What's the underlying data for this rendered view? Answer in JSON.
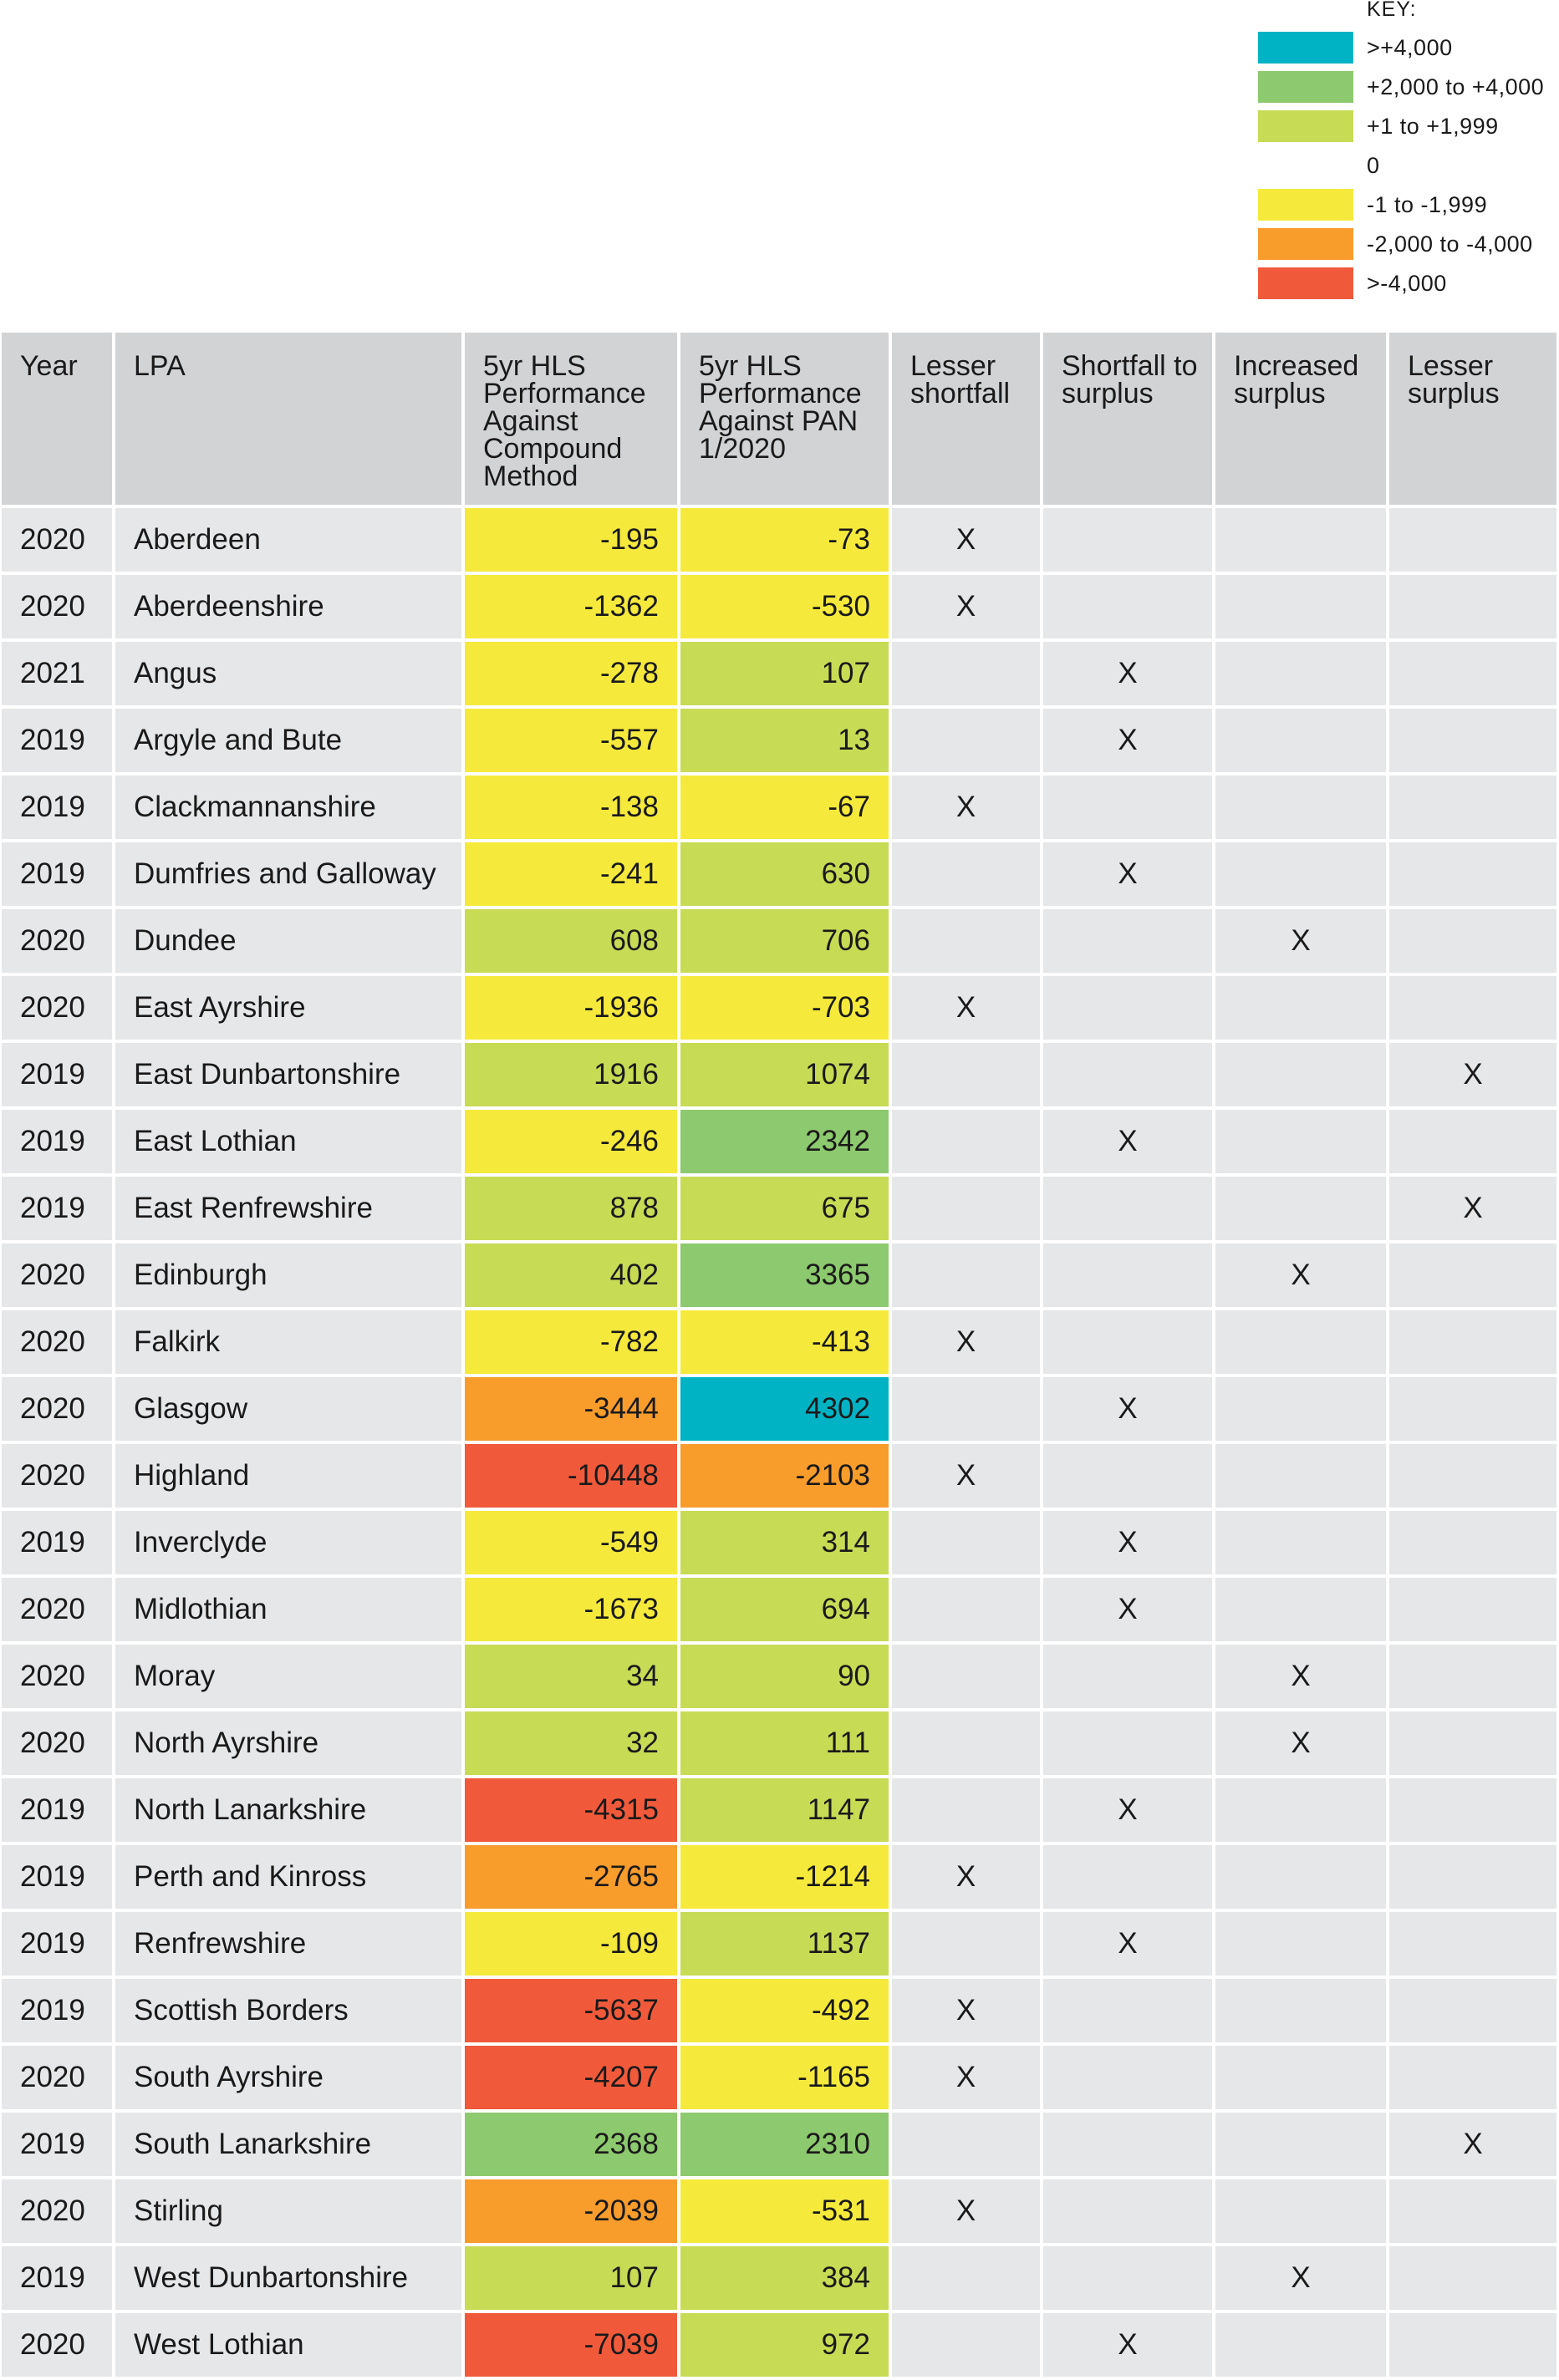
{
  "legend": {
    "title": "KEY:",
    "items": [
      {
        "label": ">+4,000",
        "color": "#00b3c4"
      },
      {
        "label": "+2,000 to +4,000",
        "color": "#8dc96e"
      },
      {
        "label": "+1 to +1,999",
        "color": "#c8db55"
      },
      {
        "label": "0",
        "color": null
      },
      {
        "label": "-1 to -1,999",
        "color": "#f5ea3c"
      },
      {
        "label": "-2,000 to -4,000",
        "color": "#f89c2c"
      },
      {
        "label": ">-4,000",
        "color": "#f05a3b"
      }
    ]
  },
  "chart_data": {
    "type": "table",
    "columns": [
      "Year",
      "LPA",
      "5yr HLS Performance Against Compound Method",
      "5yr HLS Performance Against PAN 1/2020",
      "Lesser shortfall",
      "Shortfall to surplus",
      "Increased surplus",
      "Lesser surplus"
    ],
    "rows": [
      {
        "year": "2020",
        "lpa": "Aberdeen",
        "compound": -195,
        "pan": -73,
        "category": "Lesser shortfall"
      },
      {
        "year": "2020",
        "lpa": "Aberdeenshire",
        "compound": -1362,
        "pan": -530,
        "category": "Lesser shortfall"
      },
      {
        "year": "2021",
        "lpa": "Angus",
        "compound": -278,
        "pan": 107,
        "category": "Shortfall to surplus"
      },
      {
        "year": "2019",
        "lpa": "Argyle and Bute",
        "compound": -557,
        "pan": 13,
        "category": "Shortfall to surplus"
      },
      {
        "year": "2019",
        "lpa": "Clackmannanshire",
        "compound": -138,
        "pan": -67,
        "category": "Lesser shortfall"
      },
      {
        "year": "2019",
        "lpa": "Dumfries and Galloway",
        "compound": -241,
        "pan": 630,
        "category": "Shortfall to surplus"
      },
      {
        "year": "2020",
        "lpa": "Dundee",
        "compound": 608,
        "pan": 706,
        "category": "Increased surplus"
      },
      {
        "year": "2020",
        "lpa": "East Ayrshire",
        "compound": -1936,
        "pan": -703,
        "category": "Lesser shortfall"
      },
      {
        "year": "2019",
        "lpa": "East Dunbartonshire",
        "compound": 1916,
        "pan": 1074,
        "category": "Lesser surplus"
      },
      {
        "year": "2019",
        "lpa": "East Lothian",
        "compound": -246,
        "pan": 2342,
        "category": "Shortfall to surplus"
      },
      {
        "year": "2019",
        "lpa": "East Renfrewshire",
        "compound": 878,
        "pan": 675,
        "category": "Lesser surplus"
      },
      {
        "year": "2020",
        "lpa": "Edinburgh",
        "compound": 402,
        "pan": 3365,
        "category": "Increased surplus"
      },
      {
        "year": "2020",
        "lpa": "Falkirk",
        "compound": -782,
        "pan": -413,
        "category": "Lesser shortfall"
      },
      {
        "year": "2020",
        "lpa": "Glasgow",
        "compound": -3444,
        "pan": 4302,
        "category": "Shortfall to surplus"
      },
      {
        "year": "2020",
        "lpa": "Highland",
        "compound": -10448,
        "pan": -2103,
        "category": "Lesser shortfall"
      },
      {
        "year": "2019",
        "lpa": "Inverclyde",
        "compound": -549,
        "pan": 314,
        "category": "Shortfall to surplus"
      },
      {
        "year": "2020",
        "lpa": "Midlothian",
        "compound": -1673,
        "pan": 694,
        "category": "Shortfall to surplus"
      },
      {
        "year": "2020",
        "lpa": "Moray",
        "compound": 34,
        "pan": 90,
        "category": "Increased surplus"
      },
      {
        "year": "2020",
        "lpa": "North Ayrshire",
        "compound": 32,
        "pan": 111,
        "category": "Increased surplus"
      },
      {
        "year": "2019",
        "lpa": "North Lanarkshire",
        "compound": -4315,
        "pan": 1147,
        "category": "Shortfall to surplus"
      },
      {
        "year": "2019",
        "lpa": "Perth and Kinross",
        "compound": -2765,
        "pan": -1214,
        "category": "Lesser shortfall"
      },
      {
        "year": "2019",
        "lpa": "Renfrewshire",
        "compound": -109,
        "pan": 1137,
        "category": "Shortfall to surplus"
      },
      {
        "year": "2019",
        "lpa": "Scottish Borders",
        "compound": -5637,
        "pan": -492,
        "category": "Lesser shortfall"
      },
      {
        "year": "2020",
        "lpa": "South Ayrshire",
        "compound": -4207,
        "pan": -1165,
        "category": "Lesser shortfall"
      },
      {
        "year": "2019",
        "lpa": "South Lanarkshire",
        "compound": 2368,
        "pan": 2310,
        "category": "Lesser surplus"
      },
      {
        "year": "2020",
        "lpa": "Stirling",
        "compound": -2039,
        "pan": -531,
        "category": "Lesser shortfall"
      },
      {
        "year": "2019",
        "lpa": "West Dunbartonshire",
        "compound": 107,
        "pan": 384,
        "category": "Increased surplus"
      },
      {
        "year": "2020",
        "lpa": "West Lothian",
        "compound": -7039,
        "pan": 972,
        "category": "Shortfall to surplus"
      }
    ],
    "mark": "X"
  }
}
